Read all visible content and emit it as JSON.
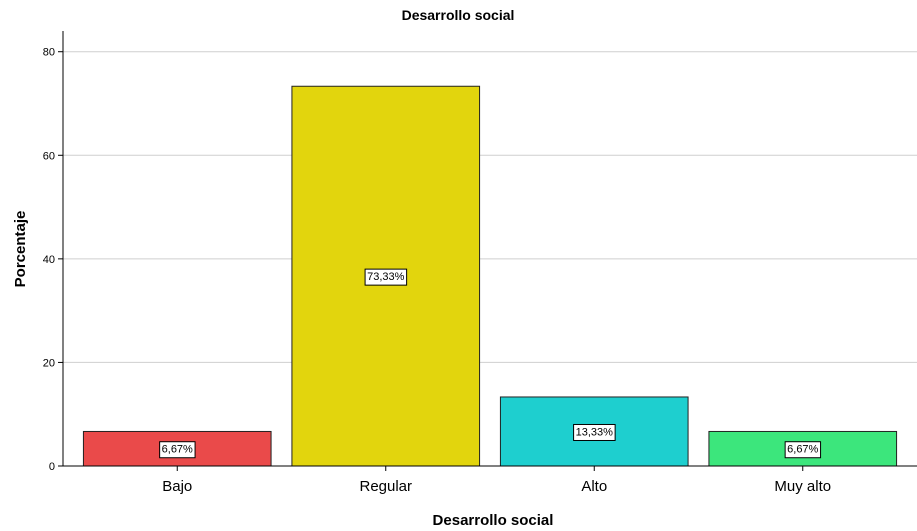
{
  "chart_data": {
    "type": "bar",
    "title": "Desarrollo social",
    "xlabel": "Desarrollo social",
    "ylabel": "Porcentaje",
    "ylim": [
      0,
      84
    ],
    "yticks": [
      0,
      20,
      40,
      60,
      80
    ],
    "grid": true,
    "categories": [
      "Bajo",
      "Regular",
      "Alto",
      "Muy alto"
    ],
    "values": [
      6.67,
      73.33,
      13.33,
      6.67
    ],
    "data_labels": [
      "6,67%",
      "73,33%",
      "13,33%",
      "6,67%"
    ],
    "colors": [
      "#ea4a4a",
      "#e2d50d",
      "#1ecfcf",
      "#3ce67c"
    ]
  }
}
